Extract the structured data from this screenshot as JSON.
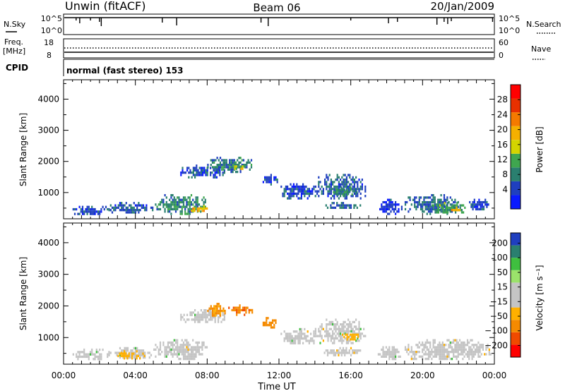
{
  "header": {
    "left": "Unwin (fitACF)",
    "center": "Beam 06",
    "right": "20/Jan/2009"
  },
  "nsky_panel": {
    "left_label": "N.Sky",
    "left_ticks": [
      "10^5",
      "10^0"
    ],
    "right_label": "N.Search",
    "right_ticks": [
      "10^5",
      "10^0"
    ]
  },
  "freq_panel": {
    "left_label_1": "Freq.",
    "left_label_2": "[MHz]",
    "left_ticks": [
      "18",
      "8"
    ],
    "right_label": "Nave",
    "right_ticks": [
      "60",
      "0"
    ]
  },
  "cpid_panel": {
    "label": "CPID",
    "text": "normal (fast stereo) 153"
  },
  "x_axis": {
    "label": "Time UT",
    "ticks": [
      "00:00",
      "04:00",
      "08:00",
      "12:00",
      "16:00",
      "20:00",
      "00:00"
    ]
  },
  "colors": {
    "power": [
      "#0a1aff",
      "#1f3fbf",
      "#2a7f6f",
      "#3fa64f",
      "#d4d400",
      "#f5b000",
      "#f57a00",
      "#e83000",
      "#ff0000"
    ],
    "velocity_pos": [
      "#1f3fbf",
      "#2a7f6f",
      "#3fbf3f",
      "#9be26b"
    ],
    "velocity_neutral": "#c4c4c4",
    "velocity_neg": [
      "#ffb000",
      "#f58a00",
      "#f04a00",
      "#ff0000"
    ]
  },
  "chart_data": [
    {
      "type": "heatmap",
      "title": "",
      "xlabel": "Time UT",
      "ylabel": "Slant Range [km]",
      "xlim": [
        0,
        24
      ],
      "ylim": [
        180,
        4600
      ],
      "yticks": [
        "4000",
        "3000",
        "2000",
        "1000"
      ],
      "colorbar": {
        "label": "Power [dB]",
        "ticks": [
          "28",
          "24",
          "20",
          "16",
          "12",
          "8",
          "4"
        ],
        "range": [
          0,
          30
        ]
      },
      "regions": [
        {
          "t": [
            0.5,
            2.5
          ],
          "r": [
            300,
            650
          ],
          "val": 5
        },
        {
          "t": [
            2.5,
            5.0
          ],
          "r": [
            350,
            700
          ],
          "val": 6
        },
        {
          "t": [
            5.0,
            8.0
          ],
          "r": [
            350,
            950
          ],
          "val": 9
        },
        {
          "t": [
            7.0,
            8.0
          ],
          "r": [
            400,
            600
          ],
          "val": 18
        },
        {
          "t": [
            6.5,
            9.0
          ],
          "r": [
            1500,
            1900
          ],
          "val": 5
        },
        {
          "t": [
            8.0,
            10.5
          ],
          "r": [
            1700,
            2150
          ],
          "val": 8
        },
        {
          "t": [
            9.5,
            10.2
          ],
          "r": [
            1750,
            1950
          ],
          "val": 15
        },
        {
          "t": [
            11.0,
            12.0
          ],
          "r": [
            1300,
            1600
          ],
          "val": 5
        },
        {
          "t": [
            12.0,
            14.0
          ],
          "r": [
            800,
            1300
          ],
          "val": 5
        },
        {
          "t": [
            14.0,
            16.8
          ],
          "r": [
            800,
            1600
          ],
          "val": 6
        },
        {
          "t": [
            15.0,
            16.3
          ],
          "r": [
            950,
            1200
          ],
          "val": 10
        },
        {
          "t": [
            14.5,
            16.5
          ],
          "r": [
            500,
            700
          ],
          "val": 7
        },
        {
          "t": [
            17.5,
            18.8
          ],
          "r": [
            350,
            800
          ],
          "val": 4
        },
        {
          "t": [
            19.0,
            22.0
          ],
          "r": [
            350,
            950
          ],
          "val": 7
        },
        {
          "t": [
            20.5,
            22.5
          ],
          "r": [
            350,
            700
          ],
          "val": 11
        },
        {
          "t": [
            21.5,
            22.1
          ],
          "r": [
            400,
            550
          ],
          "val": 20
        },
        {
          "t": [
            22.5,
            23.8
          ],
          "r": [
            450,
            800
          ],
          "val": 5
        }
      ]
    },
    {
      "type": "heatmap",
      "title": "",
      "xlabel": "Time UT",
      "ylabel": "Slant Range [km]",
      "xlim": [
        0,
        24
      ],
      "ylim": [
        180,
        4600
      ],
      "yticks": [
        "4000",
        "3000",
        "2000",
        "1000"
      ],
      "colorbar": {
        "label": "Velocity [m s⁻¹]",
        "ticks": [
          "200",
          "100",
          "50",
          "15",
          "−15",
          "−50",
          "−100",
          "−200"
        ],
        "range": [
          -250,
          250
        ]
      },
      "regions": [
        {
          "t": [
            0.5,
            2.5
          ],
          "r": [
            300,
            650
          ],
          "val": 0
        },
        {
          "t": [
            2.5,
            5.0
          ],
          "r": [
            350,
            700
          ],
          "val": 0
        },
        {
          "t": [
            3.0,
            4.5
          ],
          "r": [
            350,
            600
          ],
          "val": -40
        },
        {
          "t": [
            5.0,
            8.0
          ],
          "r": [
            350,
            950
          ],
          "val": 0
        },
        {
          "t": [
            6.5,
            9.0
          ],
          "r": [
            1500,
            1900
          ],
          "val": 0
        },
        {
          "t": [
            8.0,
            9.0
          ],
          "r": [
            1700,
            2100
          ],
          "val": -60
        },
        {
          "t": [
            9.0,
            10.5
          ],
          "r": [
            1750,
            2050
          ],
          "val": -90
        },
        {
          "t": [
            11.0,
            12.0
          ],
          "r": [
            1300,
            1650
          ],
          "val": -70
        },
        {
          "t": [
            12.0,
            14.0
          ],
          "r": [
            800,
            1300
          ],
          "val": 0
        },
        {
          "t": [
            14.0,
            16.8
          ],
          "r": [
            800,
            1600
          ],
          "val": 0
        },
        {
          "t": [
            15.5,
            16.5
          ],
          "r": [
            950,
            1200
          ],
          "val": -30
        },
        {
          "t": [
            14.5,
            16.5
          ],
          "r": [
            450,
            700
          ],
          "val": 0
        },
        {
          "t": [
            17.5,
            18.8
          ],
          "r": [
            350,
            800
          ],
          "val": 0
        },
        {
          "t": [
            19.0,
            23.8
          ],
          "r": [
            300,
            950
          ],
          "val": 0
        }
      ]
    }
  ]
}
